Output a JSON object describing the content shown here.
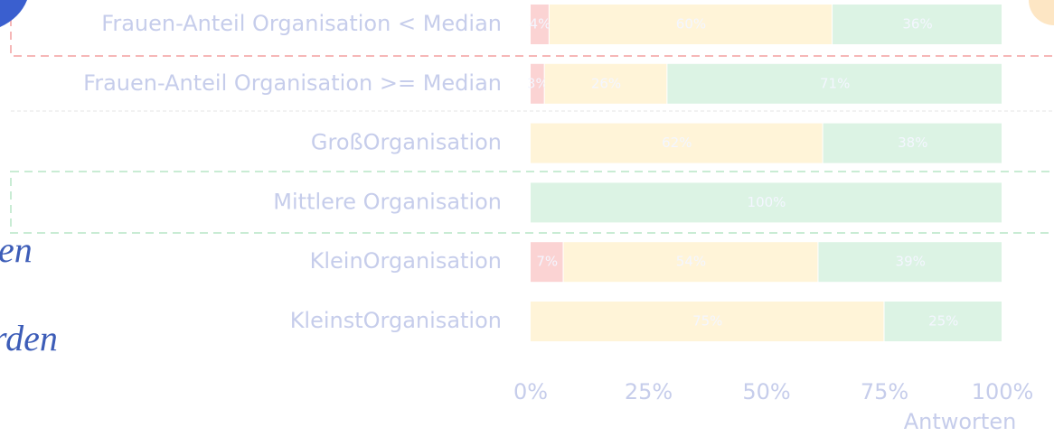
{
  "chart_data": {
    "type": "stacked-barh",
    "categories": [
      "Frauen-Anteil Organisation < Median",
      "Frauen-Anteil Organisation >= Median",
      "GroßOrganisation",
      "Mittlere Organisation",
      "KleinOrganisation",
      "KleinstOrganisation"
    ],
    "series": [
      {
        "color": "#fbd3d3",
        "values": [
          4,
          3,
          null,
          null,
          7,
          null
        ],
        "value_labels": [
          "4%",
          "3%",
          null,
          null,
          "7%",
          null
        ]
      },
      {
        "color": "#fff4d8",
        "values": [
          60,
          26,
          62,
          null,
          54,
          75
        ],
        "value_labels": [
          "60%",
          "26%",
          "62%",
          null,
          "54%",
          "75%"
        ]
      },
      {
        "color": "#dcf3e4",
        "values": [
          36,
          71,
          38,
          100,
          39,
          25
        ],
        "value_labels": [
          "36%",
          "71%",
          "38%",
          "100%",
          "39%",
          "25%"
        ]
      }
    ],
    "xlim": [
      0,
      100
    ],
    "xticks": [
      {
        "value": 0,
        "label": "0%"
      },
      {
        "value": 25,
        "label": "25%"
      },
      {
        "value": 50,
        "label": "50%"
      },
      {
        "value": 75,
        "label": "75%"
      },
      {
        "value": 100,
        "label": "100%"
      }
    ],
    "xlabel": "Antworten",
    "annotations": [
      "en",
      "rden"
    ]
  }
}
